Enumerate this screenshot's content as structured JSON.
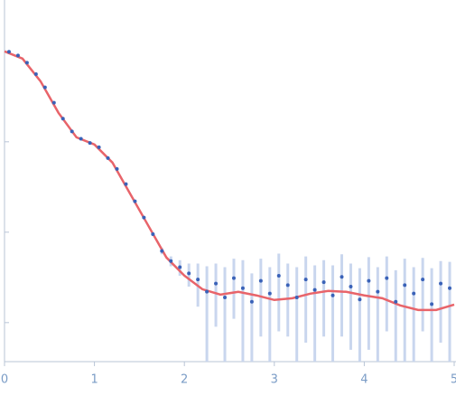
{
  "chart_data": {
    "type": "scatter",
    "log_y": true,
    "xlim": [
      0,
      5
    ],
    "xticks": [
      0,
      1,
      2,
      3,
      4,
      5
    ],
    "ylim": [
      0.00037,
      3.7
    ],
    "yticks": [
      1,
      0.1,
      0.01,
      0.001
    ],
    "points": {
      "color": "#3a62b8",
      "error_color": "#c9d6ee",
      "x": [
        0.05,
        0.15,
        0.25,
        0.35,
        0.45,
        0.55,
        0.65,
        0.75,
        0.85,
        0.95,
        1.05,
        1.15,
        1.25,
        1.35,
        1.45,
        1.55,
        1.65,
        1.75,
        1.85,
        1.95,
        2.05,
        2.15,
        2.25,
        2.35,
        2.45,
        2.55,
        2.65,
        2.75,
        2.85,
        2.95,
        3.05,
        3.15,
        3.25,
        3.35,
        3.45,
        3.55,
        3.65,
        3.75,
        3.85,
        3.95,
        4.05,
        4.15,
        4.25,
        4.35,
        4.45,
        4.55,
        4.65,
        4.75,
        4.85,
        4.95
      ],
      "values": [
        0.99,
        0.9,
        0.75,
        0.56,
        0.4,
        0.27,
        0.18,
        0.13,
        0.108,
        0.097,
        0.087,
        0.066,
        0.05,
        0.034,
        0.022,
        0.0145,
        0.0095,
        0.0062,
        0.0048,
        0.0041,
        0.0035,
        0.003,
        0.0022,
        0.0027,
        0.0019,
        0.0031,
        0.0024,
        0.0017,
        0.0029,
        0.0021,
        0.0033,
        0.0026,
        0.0019,
        0.003,
        0.0023,
        0.0028,
        0.002,
        0.0032,
        0.0025,
        0.0018,
        0.0029,
        0.0022,
        0.0031,
        0.0017,
        0.0026,
        0.0021,
        0.003,
        0.0016,
        0.0027,
        0.0024
      ],
      "errors": [
        0.01,
        0.01,
        0.008,
        0.006,
        0.004,
        0.003,
        0.002,
        0.0015,
        0.0012,
        0.001,
        0.001,
        0.0008,
        0.0006,
        0.0005,
        0.0004,
        0.0004,
        0.0004,
        0.0005,
        0.0006,
        0.0008,
        0.001,
        0.0015,
        0.002,
        0.0018,
        0.0022,
        0.002,
        0.0025,
        0.0018,
        0.0022,
        0.002,
        0.0025,
        0.0019,
        0.0022,
        0.0024,
        0.002,
        0.0021,
        0.0023,
        0.0025,
        0.002,
        0.0022,
        0.0024,
        0.0019,
        0.0023,
        0.0021,
        0.0025,
        0.002,
        0.0022,
        0.0024,
        0.0021,
        0.0023
      ]
    },
    "fit": {
      "color": "#e8646a",
      "x": [
        0,
        0.2,
        0.4,
        0.6,
        0.8,
        1.0,
        1.2,
        1.4,
        1.6,
        1.8,
        2.0,
        2.2,
        2.4,
        2.6,
        2.8,
        3.0,
        3.2,
        3.4,
        3.6,
        3.8,
        4.0,
        4.2,
        4.4,
        4.6,
        4.8,
        5.0
      ],
      "values": [
        1,
        0.832,
        0.468,
        0.209,
        0.112,
        0.0933,
        0.0589,
        0.0263,
        0.01175,
        0.00525,
        0.00331,
        0.00234,
        0.00204,
        0.00219,
        0.002,
        0.00178,
        0.00186,
        0.00209,
        0.00224,
        0.00219,
        0.002,
        0.00186,
        0.00155,
        0.00138,
        0.00138,
        0.00158
      ]
    }
  }
}
